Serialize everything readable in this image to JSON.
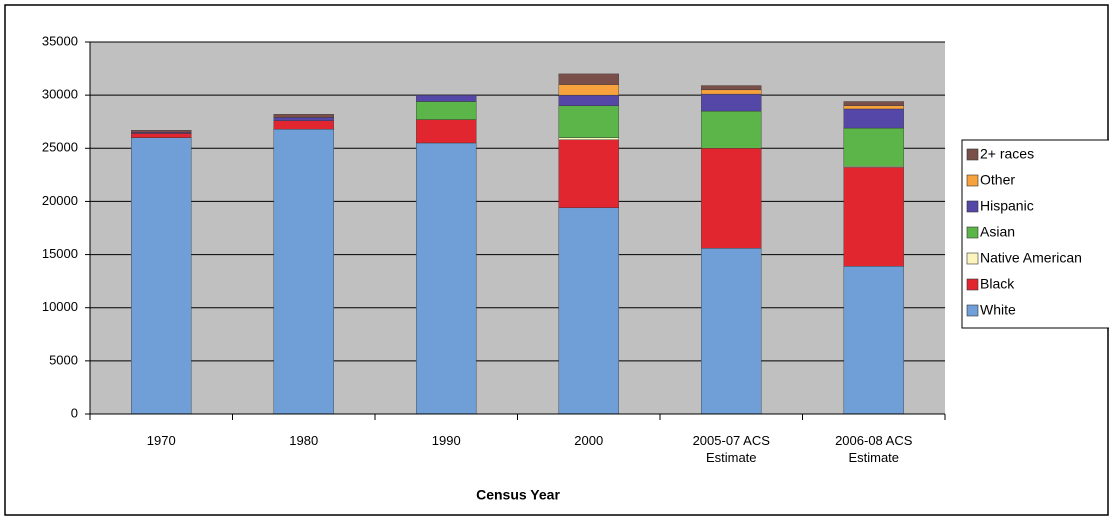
{
  "chart_data": {
    "type": "bar",
    "stacked": true,
    "x_label": "Census Year",
    "categories": [
      "1970",
      "1980",
      "1990",
      "2000",
      "2005-07 ACS Estimate",
      "2006-08 ACS Estimate"
    ],
    "series": [
      {
        "name": "White",
        "color": "#6f9fd6",
        "values": [
          26000,
          26800,
          25500,
          19400,
          15600,
          13900
        ]
      },
      {
        "name": "Black",
        "color": "#e2262f",
        "values": [
          400,
          800,
          2200,
          6400,
          9400,
          9300
        ]
      },
      {
        "name": "Native American",
        "color": "#fcf4bf",
        "values": [
          0,
          0,
          0,
          200,
          0,
          100
        ]
      },
      {
        "name": "Asian",
        "color": "#5cb548",
        "values": [
          0,
          0,
          1700,
          3000,
          3500,
          3600
        ]
      },
      {
        "name": "Hispanic",
        "color": "#5447a8",
        "values": [
          100,
          300,
          600,
          1000,
          1600,
          1800
        ]
      },
      {
        "name": "Other",
        "color": "#f7a23c",
        "values": [
          0,
          0,
          0,
          1000,
          400,
          300
        ]
      },
      {
        "name": "2+ races",
        "color": "#7a4f4a",
        "values": [
          200,
          300,
          0,
          1000,
          400,
          400
        ]
      }
    ],
    "ylim": [
      0,
      35000
    ],
    "yticks": [
      0,
      5000,
      10000,
      15000,
      20000,
      25000,
      30000,
      35000
    ],
    "grid": true,
    "legend": "right",
    "plot_background": "#c0c0c0"
  }
}
